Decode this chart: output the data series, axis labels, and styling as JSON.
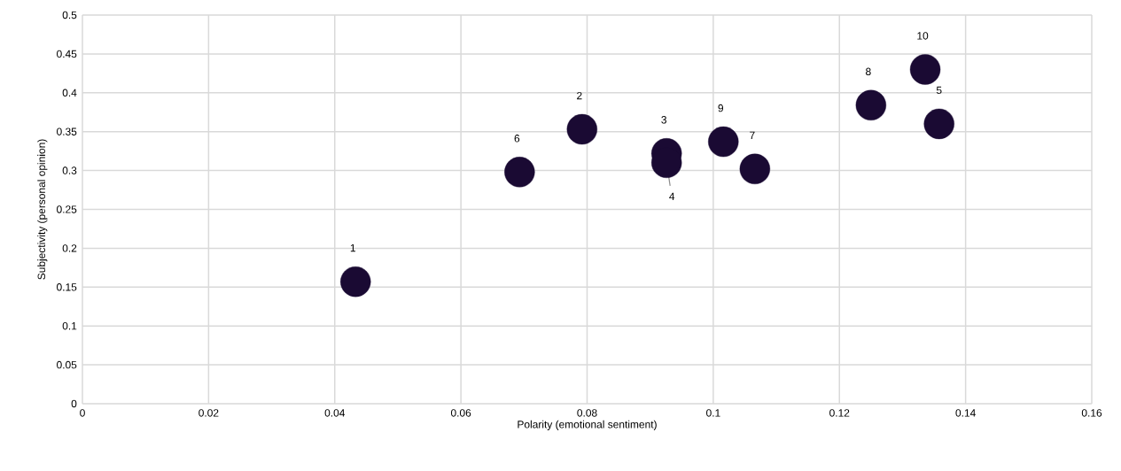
{
  "chart_data": {
    "type": "scatter",
    "xlabel": "Polarity (emotional sentiment)",
    "ylabel": "Subjectivity (personal opinion)",
    "x": [
      0.0433,
      0.0792,
      0.0926,
      0.0926,
      0.1358,
      0.0693,
      0.1066,
      0.125,
      0.1016,
      0.1336
    ],
    "series": [
      {
        "color": "#1a0a33",
        "values": [
          0.157,
          0.353,
          0.322,
          0.31,
          0.36,
          0.298,
          0.302,
          0.384,
          0.337,
          0.43
        ]
      }
    ],
    "value_labels": [
      "1",
      "2",
      "3",
      "4",
      "5",
      "6",
      "7",
      "8",
      "9",
      "10"
    ],
    "xlim": [
      0,
      0.16
    ],
    "xticks": [
      0,
      0.02,
      0.04,
      0.06,
      0.08,
      0.1,
      0.12,
      0.14,
      0.16
    ],
    "ylim": [
      0,
      0.5
    ],
    "yticks": [
      0,
      0.05,
      0.1,
      0.15,
      0.2,
      0.25,
      0.3,
      0.35,
      0.4,
      0.45,
      0.5
    ],
    "grid": true,
    "marker": "circle"
  }
}
